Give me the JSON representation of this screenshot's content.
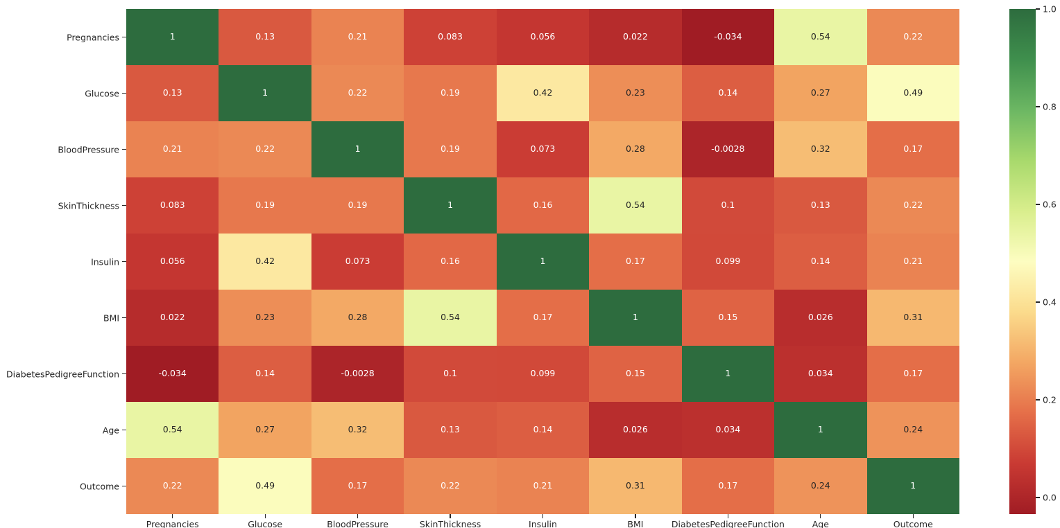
{
  "figure": {
    "background": "#ffffff",
    "axis_label_color": "#262626"
  },
  "chart_data": {
    "type": "heatmap",
    "description": "Correlation matrix heatmap of diabetes dataset features",
    "categories": [
      "Pregnancies",
      "Glucose",
      "BloodPressure",
      "SkinThickness",
      "Insulin",
      "BMI",
      "DiabetesPedigreeFunction",
      "Age",
      "Outcome"
    ],
    "matrix": [
      [
        1,
        0.13,
        0.21,
        0.083,
        0.056,
        0.022,
        -0.034,
        0.54,
        0.22
      ],
      [
        0.13,
        1,
        0.22,
        0.19,
        0.42,
        0.23,
        0.14,
        0.27,
        0.49
      ],
      [
        0.21,
        0.22,
        1,
        0.19,
        0.073,
        0.28,
        -0.0028,
        0.32,
        0.17
      ],
      [
        0.083,
        0.19,
        0.19,
        1,
        0.16,
        0.54,
        0.1,
        0.13,
        0.22
      ],
      [
        0.056,
        0.42,
        0.073,
        0.16,
        1,
        0.17,
        0.099,
        0.14,
        0.21
      ],
      [
        0.022,
        0.23,
        0.28,
        0.54,
        0.17,
        1,
        0.15,
        0.026,
        0.31
      ],
      [
        -0.034,
        0.14,
        -0.0028,
        0.1,
        0.099,
        0.15,
        1,
        0.034,
        0.17
      ],
      [
        0.54,
        0.27,
        0.32,
        0.13,
        0.14,
        0.026,
        0.034,
        1,
        0.24
      ],
      [
        0.22,
        0.49,
        0.17,
        0.22,
        0.21,
        0.31,
        0.17,
        0.24,
        1
      ]
    ],
    "value_format": "2 significant digits",
    "vmin": -0.034,
    "vmax": 1.0,
    "colormap_name": "RdYlGn",
    "colormap": [
      "#a01c24",
      "#c93a33",
      "#e56f49",
      "#f3a763",
      "#fbdb8c",
      "#fdfdc1",
      "#d9ee8d",
      "#a8d96c",
      "#6cb763",
      "#3f8f4d",
      "#2d6c3e"
    ],
    "annotation_colors": {
      "light": "#ffffff",
      "dark": "#262626"
    },
    "colorbar": {
      "position": "right",
      "tick_labels": [
        "1.0",
        "0.8",
        "0.6",
        "0.4",
        "0.2",
        "0.0"
      ],
      "tick_values": [
        1.0,
        0.8,
        0.6,
        0.4,
        0.2,
        0.0
      ]
    },
    "grid": false,
    "title": "",
    "xlabel": "",
    "ylabel": ""
  }
}
